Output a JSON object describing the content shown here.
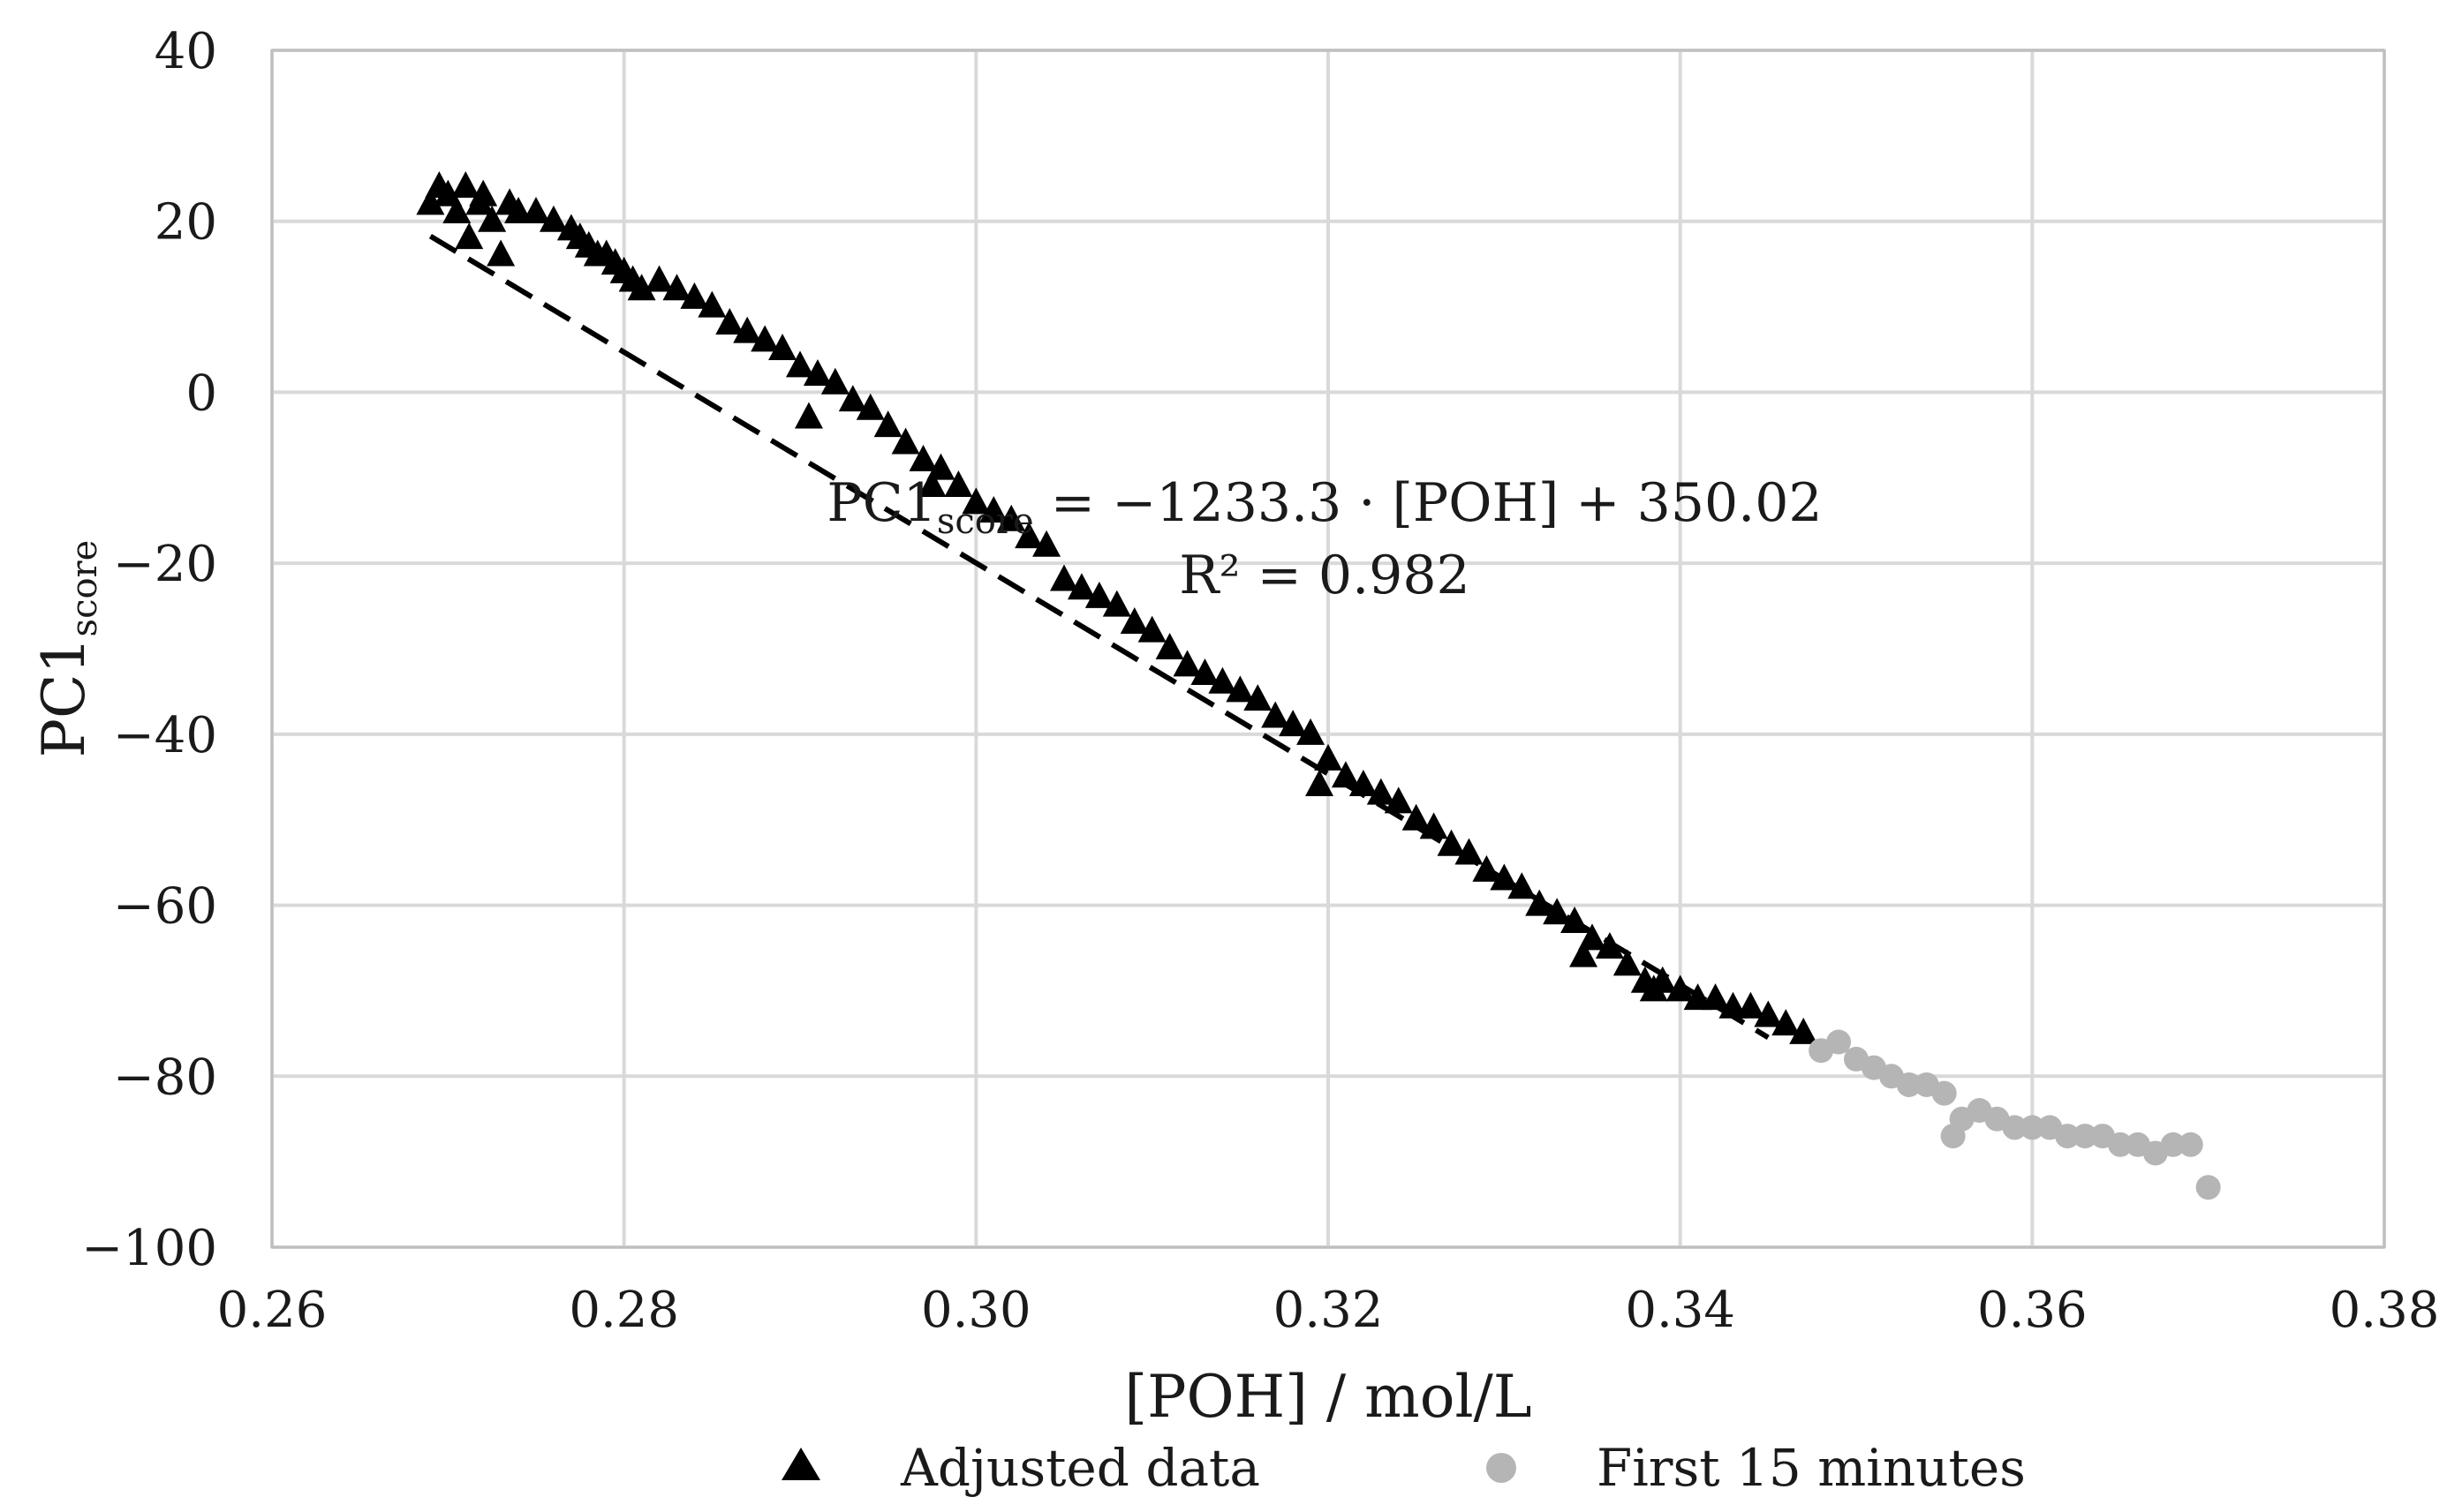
{
  "chart_data": {
    "type": "scatter",
    "xlabel": "[POH] / mol/L",
    "ylabel": {
      "main": "PC1",
      "subscript": "score"
    },
    "xlim": [
      0.26,
      0.38
    ],
    "ylim": [
      -100,
      40
    ],
    "xticks": [
      "0.26",
      "0.28",
      "0.30",
      "0.32",
      "0.34",
      "0.36",
      "0.38"
    ],
    "xtick_values": [
      0.26,
      0.28,
      0.3,
      0.32,
      0.34,
      0.36,
      0.38
    ],
    "yticks": [
      "40",
      "20",
      "0",
      "−20",
      "−40",
      "−60",
      "−80",
      "−100"
    ],
    "ytick_values": [
      40,
      20,
      0,
      -20,
      -40,
      -60,
      -80,
      -100
    ],
    "grid": true,
    "annotation": {
      "line1_main": "PC1",
      "line1_sub": "score",
      "line1_rest": " = −1233.3 · [POH] + 350.02",
      "line2": "R² = 0.982"
    },
    "fit": {
      "slope": -1233.3,
      "intercept": 350.02,
      "x_range": [
        0.269,
        0.345
      ],
      "style": "dashed"
    },
    "legend": {
      "placement": "bottom",
      "entries": [
        {
          "label": "Adjusted data",
          "marker": "triangle",
          "color": "#000000"
        },
        {
          "label": "First 15 minutes",
          "marker": "circle",
          "color": "#b5b5b5"
        }
      ]
    },
    "series": [
      {
        "name": "Adjusted data",
        "marker": "triangle",
        "color": "#000000",
        "points": [
          [
            0.269,
            22
          ],
          [
            0.2695,
            24
          ],
          [
            0.27,
            23
          ],
          [
            0.2705,
            21
          ],
          [
            0.271,
            24
          ],
          [
            0.2712,
            18
          ],
          [
            0.2718,
            22
          ],
          [
            0.272,
            23
          ],
          [
            0.2725,
            20
          ],
          [
            0.273,
            16
          ],
          [
            0.2735,
            22
          ],
          [
            0.274,
            21
          ],
          [
            0.275,
            21
          ],
          [
            0.276,
            20
          ],
          [
            0.277,
            19
          ],
          [
            0.2775,
            18
          ],
          [
            0.278,
            17
          ],
          [
            0.2785,
            16
          ],
          [
            0.279,
            16
          ],
          [
            0.2795,
            15
          ],
          [
            0.28,
            14
          ],
          [
            0.2805,
            13
          ],
          [
            0.281,
            12
          ],
          [
            0.282,
            13
          ],
          [
            0.283,
            12
          ],
          [
            0.284,
            11
          ],
          [
            0.285,
            10
          ],
          [
            0.286,
            8
          ],
          [
            0.287,
            7
          ],
          [
            0.288,
            6
          ],
          [
            0.289,
            5
          ],
          [
            0.29,
            3
          ],
          [
            0.2905,
            -3
          ],
          [
            0.291,
            2
          ],
          [
            0.292,
            1
          ],
          [
            0.293,
            -1
          ],
          [
            0.294,
            -2
          ],
          [
            0.295,
            -4
          ],
          [
            0.296,
            -6
          ],
          [
            0.297,
            -8
          ],
          [
            0.2975,
            -11
          ],
          [
            0.298,
            -9
          ],
          [
            0.299,
            -11
          ],
          [
            0.3,
            -13
          ],
          [
            0.301,
            -14
          ],
          [
            0.302,
            -15
          ],
          [
            0.303,
            -17
          ],
          [
            0.304,
            -18
          ],
          [
            0.305,
            -22
          ],
          [
            0.306,
            -23
          ],
          [
            0.307,
            -24
          ],
          [
            0.308,
            -25
          ],
          [
            0.309,
            -27
          ],
          [
            0.31,
            -28
          ],
          [
            0.311,
            -30
          ],
          [
            0.312,
            -32
          ],
          [
            0.313,
            -33
          ],
          [
            0.314,
            -34
          ],
          [
            0.315,
            -35
          ],
          [
            0.316,
            -36
          ],
          [
            0.317,
            -38
          ],
          [
            0.318,
            -39
          ],
          [
            0.319,
            -40
          ],
          [
            0.3195,
            -46
          ],
          [
            0.32,
            -43
          ],
          [
            0.321,
            -45
          ],
          [
            0.322,
            -46
          ],
          [
            0.323,
            -47
          ],
          [
            0.324,
            -48
          ],
          [
            0.325,
            -50
          ],
          [
            0.326,
            -51
          ],
          [
            0.327,
            -53
          ],
          [
            0.328,
            -54
          ],
          [
            0.329,
            -56
          ],
          [
            0.33,
            -57
          ],
          [
            0.331,
            -58
          ],
          [
            0.332,
            -60
          ],
          [
            0.333,
            -61
          ],
          [
            0.334,
            -62
          ],
          [
            0.3345,
            -66
          ],
          [
            0.335,
            -64
          ],
          [
            0.336,
            -65
          ],
          [
            0.337,
            -67
          ],
          [
            0.338,
            -69
          ],
          [
            0.3385,
            -70
          ],
          [
            0.339,
            -69
          ],
          [
            0.34,
            -70
          ],
          [
            0.341,
            -71
          ],
          [
            0.342,
            -71
          ],
          [
            0.343,
            -72
          ],
          [
            0.344,
            -72
          ],
          [
            0.345,
            -73
          ],
          [
            0.346,
            -74
          ],
          [
            0.347,
            -75
          ]
        ]
      },
      {
        "name": "First 15 minutes",
        "marker": "circle",
        "color": "#b5b5b5",
        "points": [
          [
            0.348,
            -77
          ],
          [
            0.349,
            -76
          ],
          [
            0.35,
            -78
          ],
          [
            0.351,
            -79
          ],
          [
            0.352,
            -80
          ],
          [
            0.353,
            -81
          ],
          [
            0.354,
            -81
          ],
          [
            0.355,
            -82
          ],
          [
            0.3555,
            -87
          ],
          [
            0.356,
            -85
          ],
          [
            0.357,
            -84
          ],
          [
            0.358,
            -85
          ],
          [
            0.359,
            -86
          ],
          [
            0.36,
            -86
          ],
          [
            0.361,
            -86
          ],
          [
            0.362,
            -87
          ],
          [
            0.363,
            -87
          ],
          [
            0.364,
            -87
          ],
          [
            0.365,
            -88
          ],
          [
            0.366,
            -88
          ],
          [
            0.367,
            -89
          ],
          [
            0.368,
            -88
          ],
          [
            0.369,
            -88
          ],
          [
            0.37,
            -93
          ]
        ]
      }
    ]
  }
}
